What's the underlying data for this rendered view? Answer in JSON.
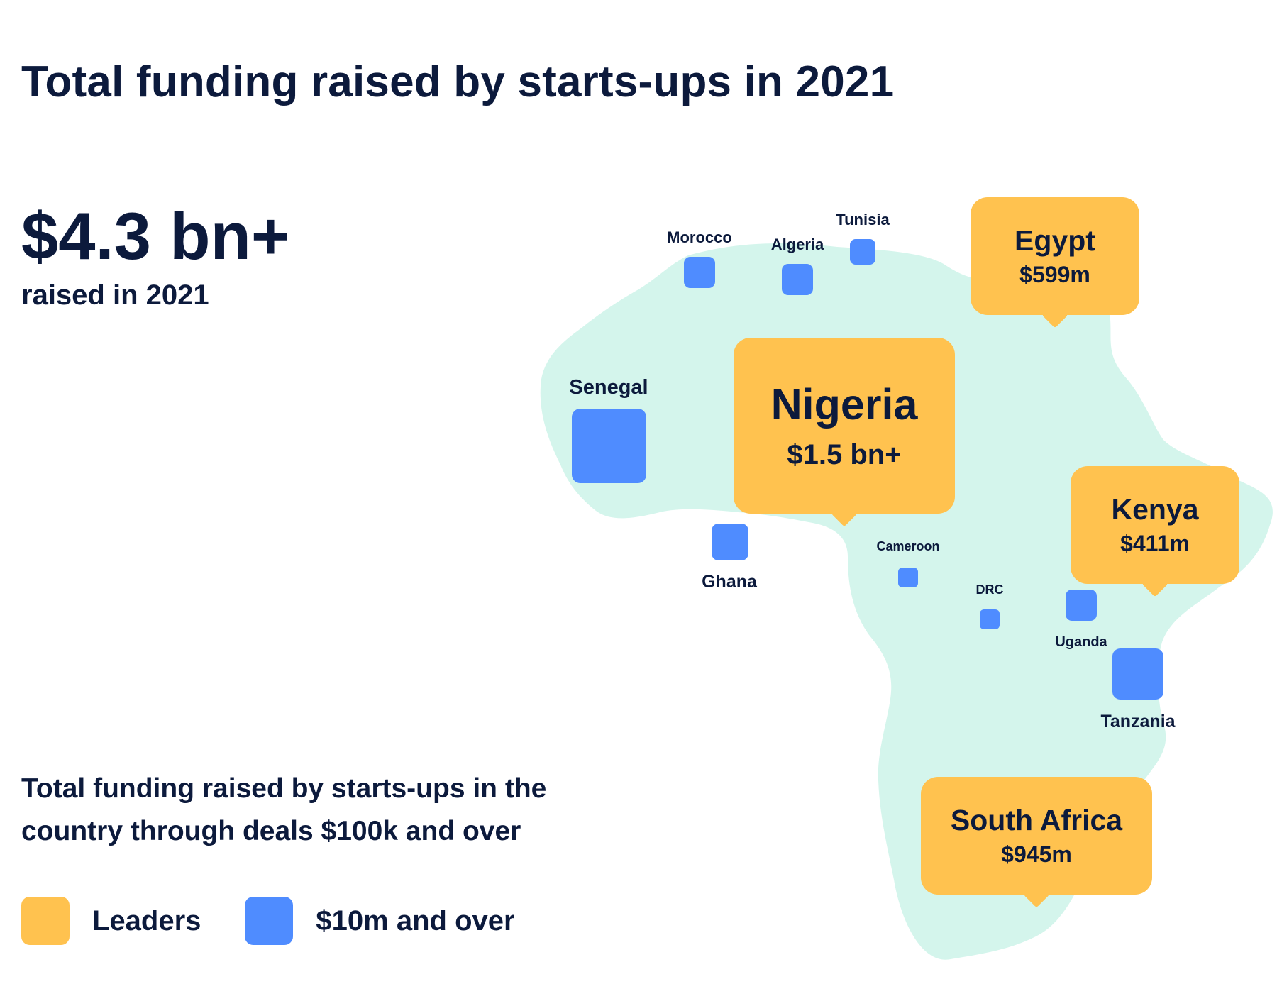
{
  "title": "Total funding raised by starts-ups in 2021",
  "total": {
    "amount": "$4.3 bn+",
    "caption": "raised in 2021"
  },
  "description": "Total funding raised by starts-ups in the country through deals $100k and over",
  "legend": {
    "leaders": "Leaders",
    "small": "$10m and over"
  },
  "colors": {
    "leaders": "#ffc24f",
    "small": "#4f8cff",
    "map": "#d4f5ec",
    "text": "#0c1a3c"
  },
  "leaders": {
    "nigeria": {
      "name": "Nigeria",
      "value": "$1.5 bn+"
    },
    "egypt": {
      "name": "Egypt",
      "value": "$599m"
    },
    "kenya": {
      "name": "Kenya",
      "value": "$411m"
    },
    "south_africa": {
      "name": "South Africa",
      "value": "$945m"
    }
  },
  "countries": {
    "morocco": "Morocco",
    "algeria": "Algeria",
    "tunisia": "Tunisia",
    "senegal": "Senegal",
    "ghana": "Ghana",
    "cameroon": "Cameroon",
    "drc": "DRC",
    "uganda": "Uganda",
    "tanzania": "Tanzania"
  }
}
